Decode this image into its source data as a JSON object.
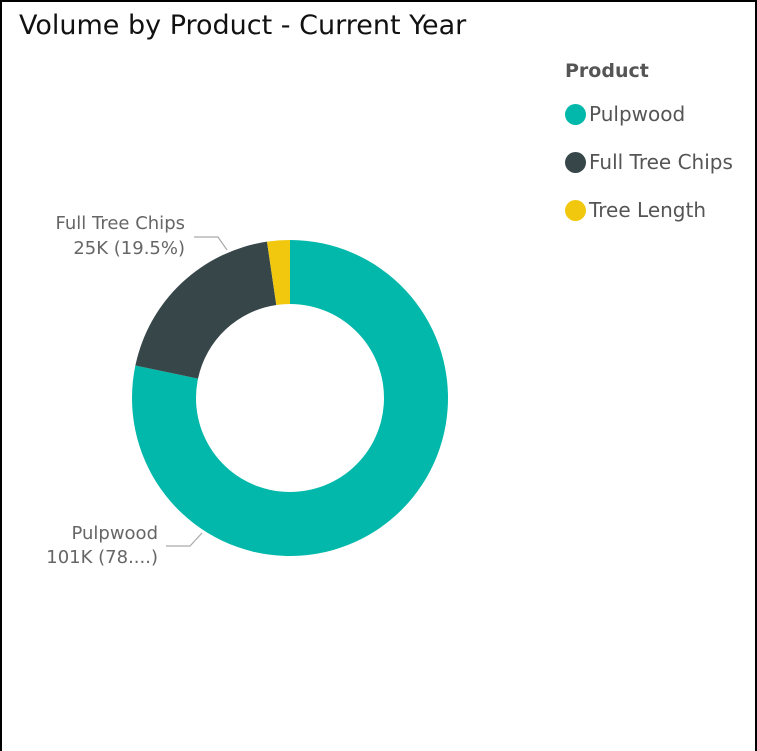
{
  "chart_data": {
    "type": "pie",
    "title": "Volume by Product - Current Year",
    "legend": {
      "title": "Product",
      "placement": "top-right"
    },
    "slices": [
      {
        "name": "Pulpwood",
        "value": 101,
        "percent": 78.1,
        "color": "#01B8AA",
        "label_lines": [
          "Pulpwood",
          "101K (78....)"
        ]
      },
      {
        "name": "Full Tree Chips",
        "value": 25,
        "percent": 19.5,
        "color": "#374649",
        "label_lines": [
          "Full Tree Chips",
          "25K (19.5%)"
        ]
      },
      {
        "name": "Tree Length",
        "value": 3,
        "percent": 2.4,
        "color": "#F2C80F",
        "label_lines": []
      }
    ]
  }
}
